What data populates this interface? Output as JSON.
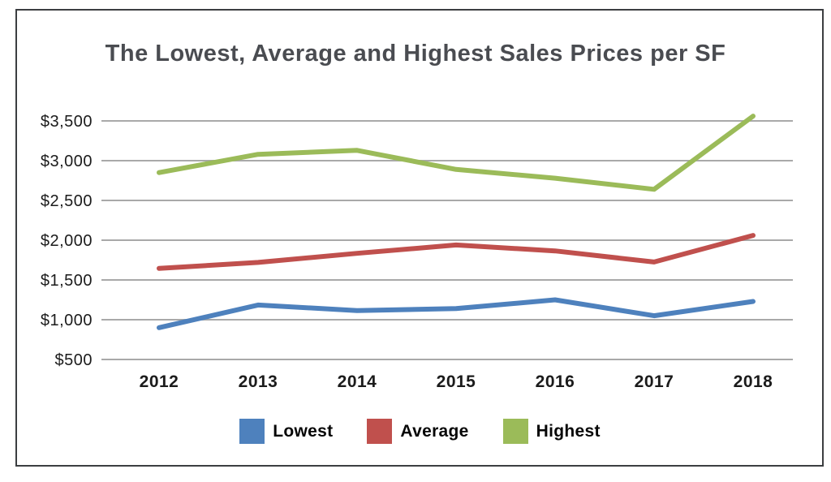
{
  "title": "The Lowest, Average and Highest Sales Prices per SF",
  "colors": {
    "frame_border": "#3c3e41",
    "title_text": "#4a4c51",
    "gridline": "#a9a9a9",
    "axis_text": "#1b1b1b",
    "lowest": "#4e81bd",
    "average": "#c0504d",
    "highest": "#9bbb59"
  },
  "chart_data": {
    "type": "line",
    "title": "The Lowest, Average and Highest Sales Prices per SF",
    "categories": [
      "2012",
      "2013",
      "2014",
      "2015",
      "2016",
      "2017",
      "2018"
    ],
    "series": [
      {
        "name": "Lowest",
        "color": "#4e81bd",
        "values": [
          900,
          1185,
          1115,
          1140,
          1250,
          1050,
          1230
        ]
      },
      {
        "name": "Average",
        "color": "#c0504d",
        "values": [
          1645,
          1720,
          1835,
          1940,
          1865,
          1725,
          2060
        ]
      },
      {
        "name": "Highest",
        "color": "#9bbb59",
        "values": [
          2850,
          3080,
          3130,
          2890,
          2780,
          2640,
          3560
        ]
      }
    ],
    "xlabel": "",
    "ylabel": "",
    "ylim": [
      500,
      3500
    ],
    "yticks": [
      500,
      1000,
      1500,
      2000,
      2500,
      3000,
      3500
    ],
    "ytick_labels": [
      "$500",
      "$1,000",
      "$1,500",
      "$2,000",
      "$2,500",
      "$3,000",
      "$3,500"
    ],
    "grid": true,
    "legend_position": "bottom"
  }
}
